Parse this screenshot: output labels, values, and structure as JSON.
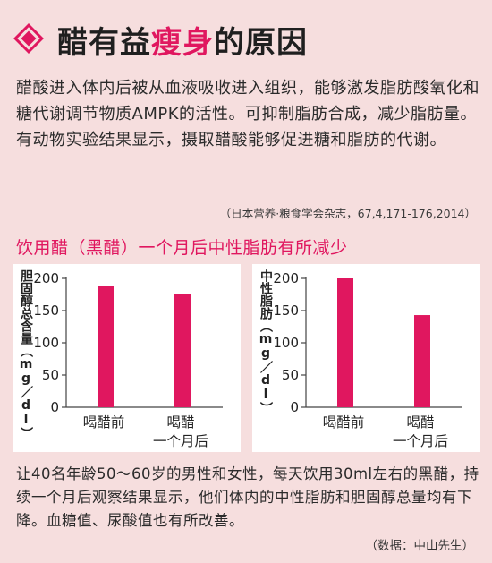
{
  "title": {
    "prefix": "醋有益",
    "accent": "瘦身",
    "suffix": "的原因"
  },
  "intro": "醋酸进入体内后被从血液吸收进入组织，能够激发脂肪酸氧化和糖代谢调节物质AMPK的活性。可抑制脂肪合成，减少脂肪量。有动物实验结果显示，摄取醋酸能够促进糖和脂肪的代谢。",
  "citation": "（日本营养·粮食学会杂志，67,4,171-176,2014）",
  "subhead": "饮用醋（黑醋）一个月后中性脂肪有所减少",
  "colors": {
    "accent": "#e0175f",
    "background": "#f6dede",
    "bar": "#e0175f"
  },
  "chart_data": [
    {
      "type": "bar",
      "ylabel": "胆固醇总含量（mg／dl）",
      "categories": [
        "喝醋前",
        "喝醋\n一个月后"
      ],
      "values": [
        188,
        176
      ],
      "ylim": [
        0,
        200
      ],
      "yticks": [
        "0",
        "50",
        "100",
        "150",
        "200"
      ],
      "grid": false
    },
    {
      "type": "bar",
      "ylabel": "中性脂肪（mg／dl）",
      "categories": [
        "喝醋前",
        "喝醋\n一个月后"
      ],
      "values": [
        200,
        143
      ],
      "ylim": [
        0,
        200
      ],
      "yticks": [
        "0",
        "50",
        "100",
        "150",
        "200"
      ],
      "grid": false
    }
  ],
  "body": "让40名年龄50～60岁的男性和女性，每天饮用30ml左右的黑醋，持续一个月后观察结果显示，他们体内的中性脂肪和胆固醇总量均有下降。血糖值、尿酸值也有所改善。",
  "source": "（数据：中山先生）"
}
